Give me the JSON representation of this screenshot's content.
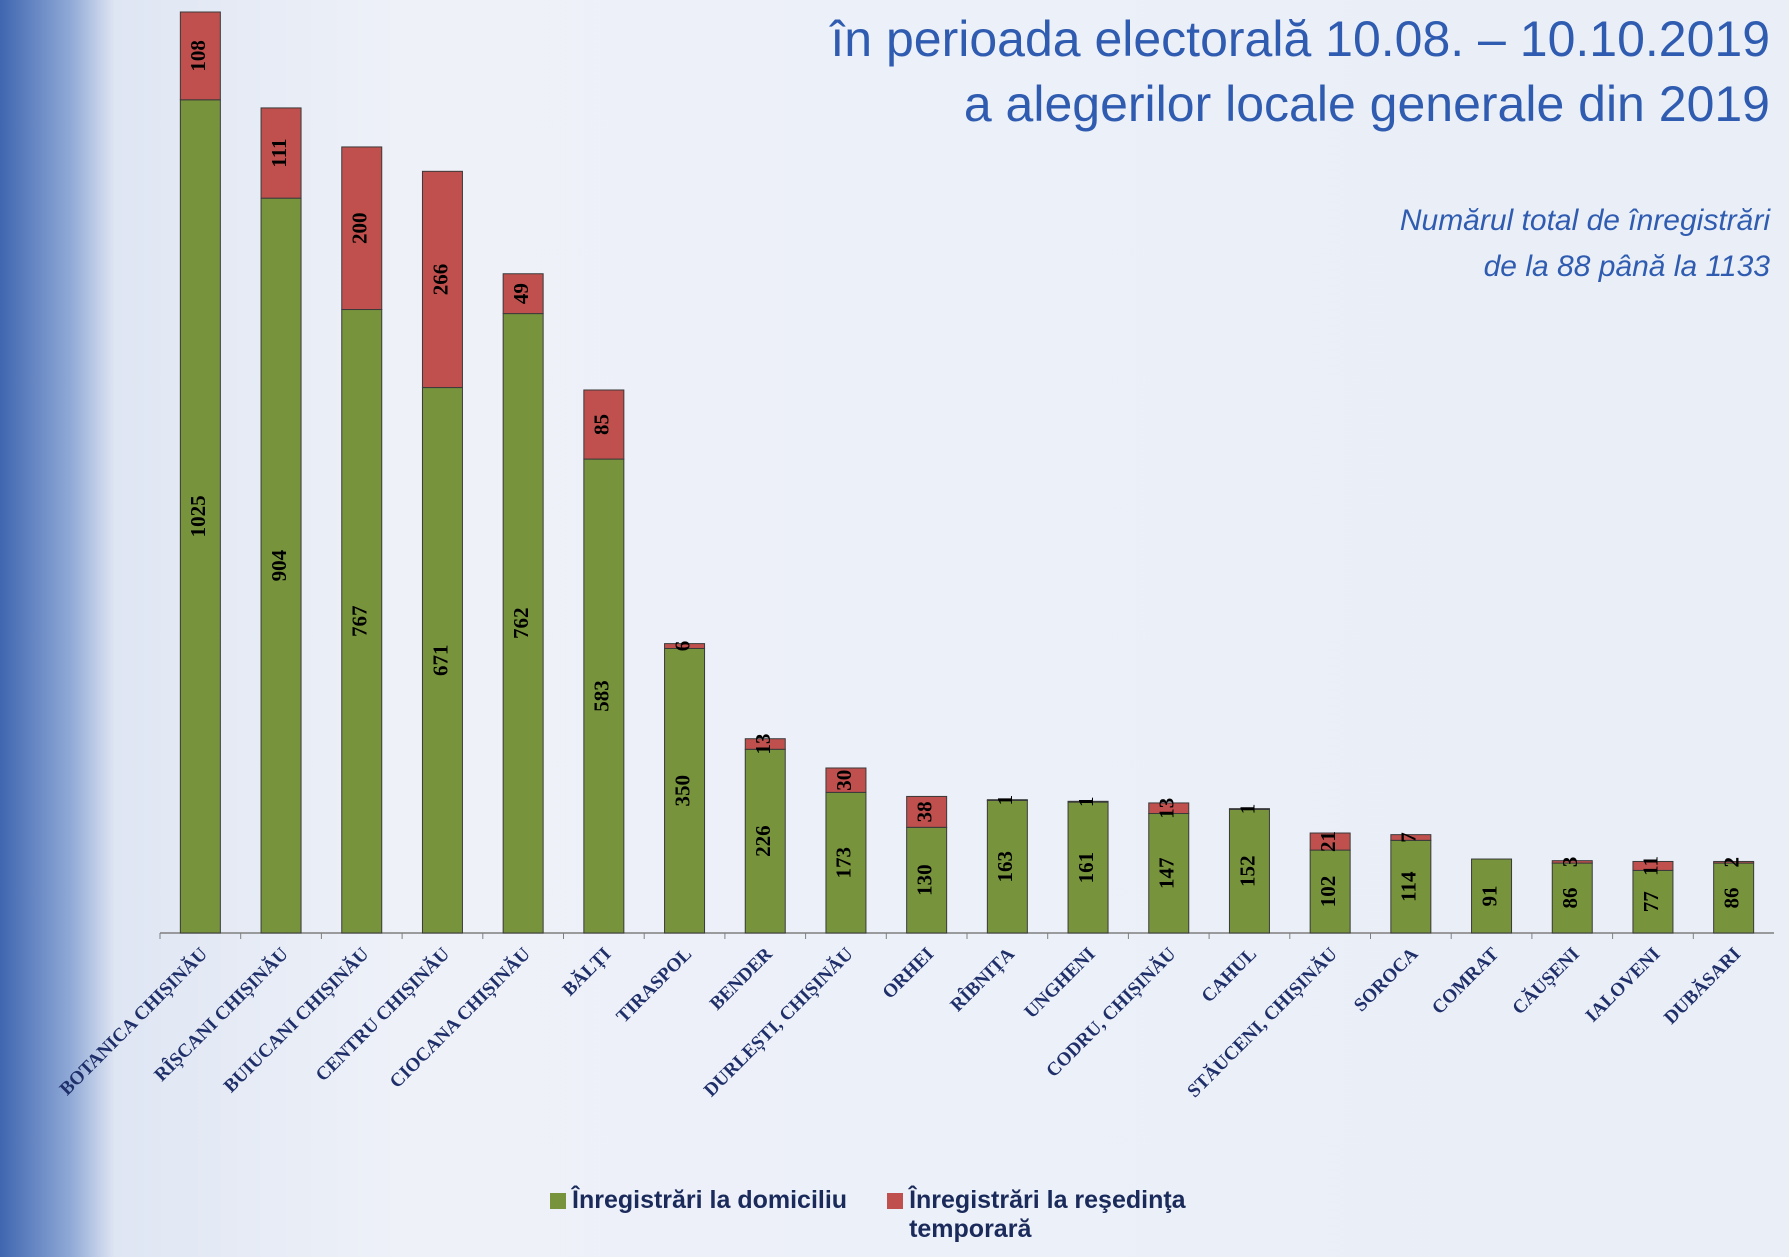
{
  "chart_data": {
    "type": "stacked-bar",
    "title": [
      "în perioada electorală 10.08. – 10.10.2019",
      "a alegerilor locale generale din 2019"
    ],
    "subtitle": [
      "Numărul total de înregistrări",
      "de la 88 până la 1133"
    ],
    "categories": [
      "BOTANICA CHIȘINĂU",
      "RÎȘCANI CHIȘINĂU",
      "BUIUCANI CHIȘINĂU",
      "CENTRU CHIȘINĂU",
      "CIOCANA CHIȘINĂU",
      "BĂLȚI",
      "TIRASPOL",
      "BENDER",
      "DURLEȘTI, CHIȘINĂU",
      "ORHEI",
      "RÎBNIȚA",
      "UNGHENI",
      "CODRU, CHIȘINĂU",
      "CAHUL",
      "STĂUCENI, CHIȘINĂU",
      "SOROCA",
      "COMRAT",
      "CĂUȘENI",
      "IALOVENI",
      "DUBĂSARI"
    ],
    "series": [
      {
        "name": "Înregistrări la domiciliu",
        "color": "#77933c",
        "values": [
          1025,
          904,
          767,
          671,
          762,
          583,
          350,
          226,
          173,
          130,
          163,
          161,
          147,
          152,
          102,
          114,
          91,
          86,
          77,
          86
        ]
      },
      {
        "name": "Înregistrări la reşedinţa temporară",
        "color": "#c0504d",
        "values": [
          108,
          111,
          200,
          266,
          49,
          85,
          6,
          13,
          30,
          38,
          1,
          1,
          13,
          1,
          21,
          7,
          null,
          3,
          11,
          2
        ]
      }
    ],
    "legend": "bottom"
  }
}
